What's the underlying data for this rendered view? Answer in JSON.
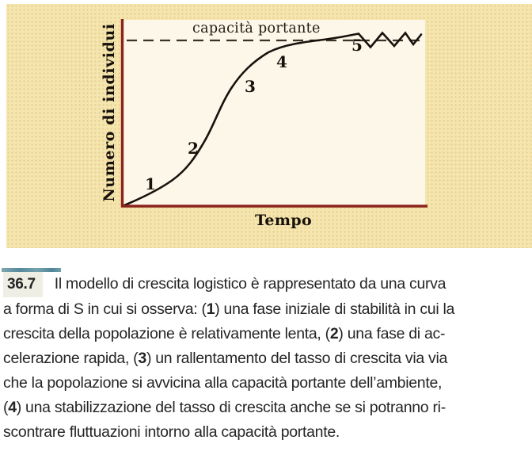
{
  "figure": {
    "y_axis_label": "Numero di individui",
    "x_axis_label": "Tempo",
    "capacity_label": "capacità portante",
    "phases": [
      "1",
      "2",
      "3",
      "4",
      "5"
    ]
  },
  "caption": {
    "number": "36.7",
    "lines": [
      "Il modello di crescita logistico è rappresentato da una curva",
      "a forma di S in cui si osserva: (1) una fase iniziale di stabilità in cui la",
      "crescita della popolazione è relativamente lenta, (2) una fase di ac-",
      "celerazione rapida, (3) un rallentamento del tasso di crescita via via",
      "che la popolazione si avvicina alla capacità portante dell’ambiente,",
      "(4) una stabilizzazione del tasso di crescita anche se si potranno ri-",
      "scontrare fluttuazioni intorno alla capacità portante."
    ]
  },
  "colors": {
    "panel_background": "#f5e5ae",
    "plot_background": "#fcf7e8",
    "axis": "#8b241d",
    "curve": "#17120d",
    "dashed_capacity_line": "#3c3127",
    "caption_rule_teal": "#5f96a6",
    "caption_text": "#252525"
  },
  "chart_data": {
    "type": "line",
    "title": "",
    "xlabel": "Tempo",
    "ylabel": "Numero di individui",
    "x_range_normalized": [
      0,
      1
    ],
    "y_range_normalized": [
      0,
      1
    ],
    "grid": false,
    "legend": false,
    "carrying_capacity_normalized": 0.89,
    "capacity_line_style": "dashed",
    "series": [
      {
        "name": "crescita logistica (curva a S con fluttuazioni finali)",
        "points_normalized": [
          [
            0.005,
            0.0
          ],
          [
            0.1,
            0.07
          ],
          [
            0.165,
            0.14
          ],
          [
            0.24,
            0.24
          ],
          [
            0.275,
            0.35
          ],
          [
            0.31,
            0.44
          ],
          [
            0.33,
            0.53
          ],
          [
            0.365,
            0.64
          ],
          [
            0.4,
            0.72
          ],
          [
            0.44,
            0.77
          ],
          [
            0.48,
            0.83
          ],
          [
            0.55,
            0.86
          ],
          [
            0.64,
            0.885
          ],
          [
            0.72,
            0.905
          ],
          [
            0.78,
            0.925
          ],
          [
            0.82,
            0.855
          ],
          [
            0.86,
            0.93
          ],
          [
            0.9,
            0.86
          ],
          [
            0.935,
            0.93
          ],
          [
            0.96,
            0.87
          ],
          [
            0.99,
            0.92
          ]
        ]
      }
    ],
    "annotations": [
      {
        "label": "1",
        "x_normalized": 0.09,
        "y_normalized": 0.13,
        "meaning": "fase iniziale di stabilità"
      },
      {
        "label": "2",
        "x_normalized": 0.23,
        "y_normalized": 0.32,
        "meaning": "fase di accelerazione rapida"
      },
      {
        "label": "3",
        "x_normalized": 0.42,
        "y_normalized": 0.65,
        "meaning": "rallentamento del tasso di crescita"
      },
      {
        "label": "4",
        "x_normalized": 0.52,
        "y_normalized": 0.78,
        "meaning": "stabilizzazione del tasso di crescita"
      },
      {
        "label": "5",
        "x_normalized": 0.77,
        "y_normalized": 0.87,
        "meaning": "fluttuazioni intorno alla capacità portante"
      },
      {
        "label": "capacità portante",
        "type": "dashed-horizontal-line",
        "y_normalized": 0.89
      }
    ]
  }
}
